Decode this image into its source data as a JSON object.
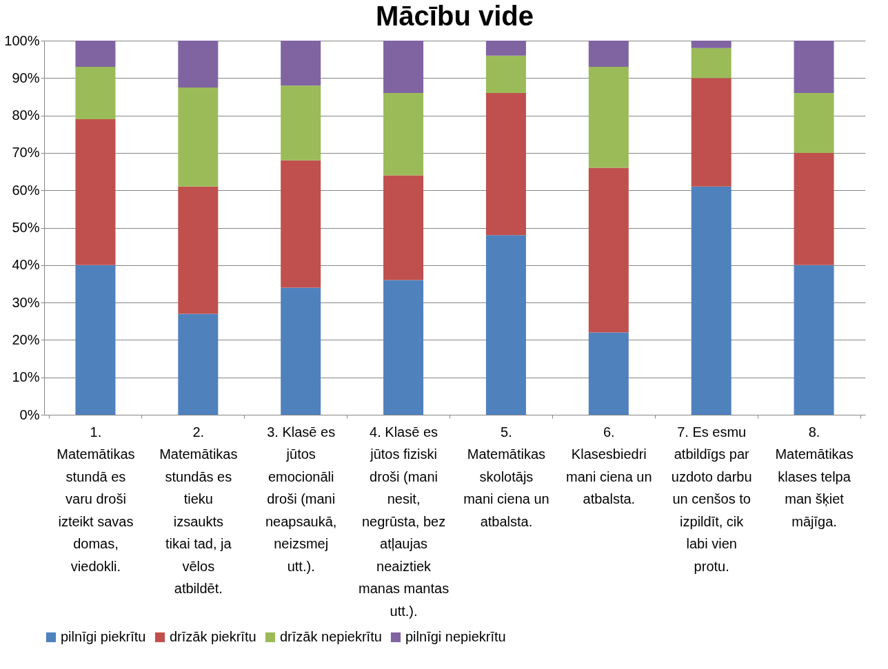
{
  "chart_data": {
    "type": "bar",
    "title": "Mācību vide",
    "stacked": true,
    "categories": [
      "1. Matemātikas stundā es varu droši izteikt savas domas, viedokli.",
      "2. Matemātikas stundās es tieku izsaukts tikai tad, ja vēlos atbildēt.",
      "3. Klasē es jūtos emocionāli droši (mani neapsaukā, neizsmej utt.).",
      "4. Klasē es jūtos fiziski droši (mani nesit, negrūsta, bez atļaujas neaiztiek manas mantas utt.).",
      "5. Matemātikas skolotājs mani ciena un atbalsta.",
      "6. Klasesbiedri mani ciena un atbalsta.",
      "7. Es esmu atbildīgs par uzdoto darbu un cenšos to izpildīt, cik labi vien protu.",
      "8. Matemātikas klases telpa man šķiet mājīga."
    ],
    "series": [
      {
        "name": "pilnīgi piekrītu",
        "color": "#4f81bd",
        "values": [
          40,
          27,
          34,
          36,
          48,
          22,
          61,
          40
        ]
      },
      {
        "name": "drīzāk piekrītu",
        "color": "#c0504d",
        "values": [
          39,
          34,
          34,
          28,
          38,
          44,
          29,
          30
        ]
      },
      {
        "name": "drīzāk nepiekrītu",
        "color": "#9bbb59",
        "values": [
          14,
          26.5,
          20,
          22,
          10,
          27,
          8,
          16
        ]
      },
      {
        "name": "pilnīgi nepiekrītu",
        "color": "#8064a2",
        "values": [
          7,
          12.5,
          12,
          14,
          4,
          7,
          2,
          14
        ]
      }
    ],
    "ylim": [
      0,
      100
    ],
    "yticks": [
      {
        "value": 0,
        "label": "0%"
      },
      {
        "value": 10,
        "label": "10%"
      },
      {
        "value": 20,
        "label": "20%"
      },
      {
        "value": 30,
        "label": "30%"
      },
      {
        "value": 40,
        "label": "40%"
      },
      {
        "value": 50,
        "label": "50%"
      },
      {
        "value": 60,
        "label": "60%"
      },
      {
        "value": 70,
        "label": "70%"
      },
      {
        "value": 80,
        "label": "80%"
      },
      {
        "value": 90,
        "label": "90%"
      },
      {
        "value": 100,
        "label": "100%"
      }
    ],
    "grid": "y",
    "legend": "bottom"
  }
}
